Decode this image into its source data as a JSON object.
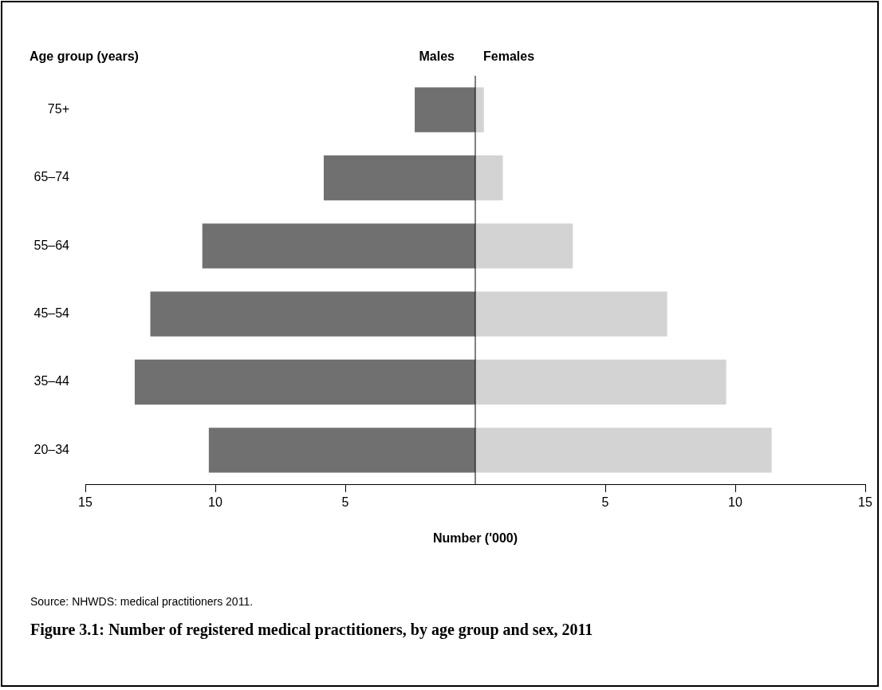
{
  "chart_data": {
    "type": "bar",
    "orientation": "horizontal",
    "stacked": true,
    "title": "Figure 3.1: Number of registered medical practitioners, by age group and sex, 2011",
    "xlabel": "Number ('000)",
    "ylabel": "Age group (years)",
    "categories": [
      "75+",
      "65–74",
      "55–64",
      "45–54",
      "35–44",
      "20–34"
    ],
    "series": [
      {
        "name": "Males",
        "color": "#707070",
        "values": [
          -2.33,
          -5.83,
          -10.5,
          -12.5,
          -13.1,
          -10.25
        ]
      },
      {
        "name": "Females",
        "color": "#d3d3d3",
        "values": [
          0.33,
          1.06,
          3.75,
          7.38,
          9.65,
          11.4
        ]
      }
    ],
    "xlim": [
      -15,
      15
    ],
    "xticks": [
      {
        "value": -15,
        "label": "15"
      },
      {
        "value": -10,
        "label": "10"
      },
      {
        "value": -5,
        "label": "5"
      },
      5,
      10,
      15
    ],
    "ref_lines": [
      {
        "axis": "x",
        "value": 0,
        "color": "#000000"
      }
    ],
    "legend": false,
    "annotations": [
      "Source: NHWDS: medical practitioners 2011."
    ]
  }
}
